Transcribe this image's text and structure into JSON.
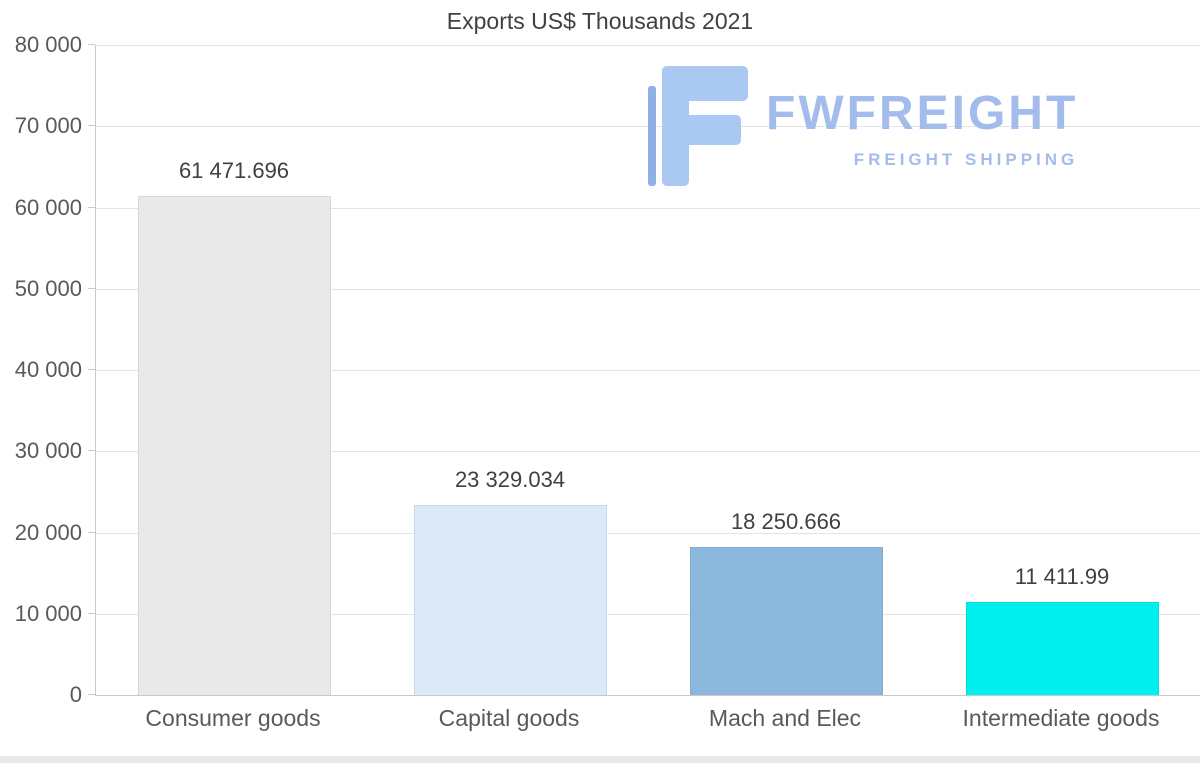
{
  "title": "Exports US$ Thousands 2021",
  "logo": {
    "name": "FWFREIGHT",
    "tagline": "FREIGHT SHIPPING",
    "color": "#a3bcec"
  },
  "chart_data": {
    "type": "bar",
    "title": "Exports US$ Thousands 2021",
    "categories": [
      "Consumer goods",
      "Capital goods",
      "Mach and Elec",
      "Intermediate goods"
    ],
    "values": [
      61471.696,
      23329.034,
      18250.666,
      11411.99
    ],
    "value_labels": [
      "61 471.696",
      "23 329.034",
      "18 250.666",
      "11 411.99"
    ],
    "bar_colors": [
      "#e9e9e9",
      "#dbe9f9",
      "#8cb8de",
      "#00efef"
    ],
    "xlabel": "",
    "ylabel": "",
    "ylim": [
      0,
      80000
    ],
    "ytick_step": 10000,
    "ytick_labels": [
      "0",
      "10 000",
      "20 000",
      "30 000",
      "40 000",
      "50 000",
      "60 000",
      "70 000",
      "80 000"
    ],
    "grid": true,
    "legend": "none"
  }
}
